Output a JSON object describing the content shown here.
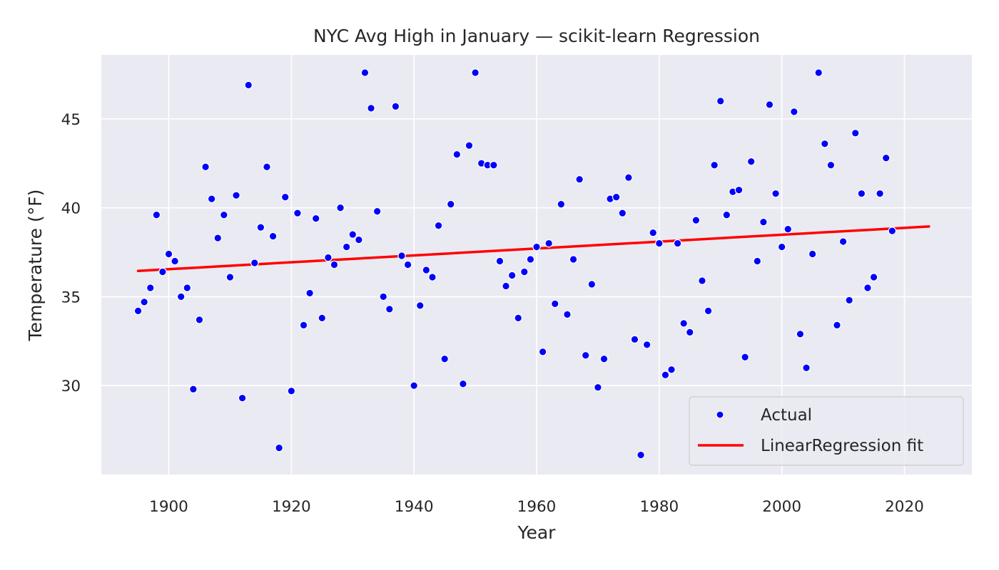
{
  "chart_data": {
    "type": "scatter",
    "title": "NYC Avg High in January — scikit-learn Regression",
    "xlabel": "Year",
    "ylabel": "Temperature (°F)",
    "xlim": [
      1889,
      2031
    ],
    "ylim": [
      25,
      48.6
    ],
    "xticks": [
      1900,
      1920,
      1940,
      1960,
      1980,
      2000,
      2020
    ],
    "yticks": [
      30,
      35,
      40,
      45
    ],
    "grid": true,
    "legend_position": "bottom-right",
    "colors": {
      "background": "#eaeaf2",
      "grid": "#ffffff",
      "points": "#0000ff",
      "fit": "#ff0000"
    },
    "series": [
      {
        "name": "Actual",
        "kind": "scatter",
        "x": [
          1895,
          1896,
          1897,
          1898,
          1899,
          1900,
          1901,
          1902,
          1903,
          1904,
          1905,
          1906,
          1907,
          1908,
          1909,
          1910,
          1911,
          1912,
          1913,
          1914,
          1915,
          1916,
          1917,
          1918,
          1919,
          1920,
          1921,
          1922,
          1923,
          1924,
          1925,
          1926,
          1927,
          1928,
          1929,
          1930,
          1931,
          1932,
          1933,
          1934,
          1935,
          1936,
          1937,
          1938,
          1939,
          1940,
          1941,
          1942,
          1943,
          1944,
          1945,
          1946,
          1947,
          1948,
          1949,
          1950,
          1951,
          1952,
          1953,
          1954,
          1955,
          1956,
          1957,
          1958,
          1959,
          1960,
          1961,
          1962,
          1963,
          1964,
          1965,
          1966,
          1967,
          1968,
          1969,
          1970,
          1971,
          1972,
          1973,
          1974,
          1975,
          1976,
          1977,
          1978,
          1979,
          1980,
          1981,
          1982,
          1983,
          1984,
          1985,
          1986,
          1987,
          1988,
          1989,
          1990,
          1991,
          1992,
          1993,
          1994,
          1995,
          1996,
          1997,
          1998,
          1999,
          2000,
          2001,
          2002,
          2003,
          2004,
          2005,
          2006,
          2007,
          2008,
          2009,
          2010,
          2011,
          2012,
          2013,
          2014,
          2015,
          2016,
          2017,
          2018
        ],
        "y": [
          34.2,
          34.7,
          35.5,
          39.6,
          36.4,
          37.4,
          37.0,
          35.0,
          35.5,
          29.8,
          33.7,
          42.3,
          40.5,
          38.3,
          39.6,
          36.1,
          40.7,
          29.3,
          46.9,
          36.9,
          38.9,
          42.3,
          38.4,
          26.5,
          40.6,
          29.7,
          39.7,
          33.4,
          35.2,
          39.4,
          33.8,
          37.2,
          36.8,
          40.0,
          37.8,
          38.5,
          38.2,
          47.6,
          45.6,
          39.8,
          35.0,
          34.3,
          45.7,
          37.3,
          36.8,
          30.0,
          34.5,
          36.5,
          36.1,
          39.0,
          31.5,
          40.2,
          43.0,
          30.1,
          43.5,
          47.6,
          42.5,
          42.4,
          42.4,
          37.0,
          35.6,
          36.2,
          33.8,
          36.4,
          37.1,
          37.8,
          31.9,
          38.0,
          34.6,
          40.2,
          34.0,
          37.1,
          41.6,
          31.7,
          35.7,
          29.9,
          31.5,
          40.5,
          40.6,
          39.7,
          41.7,
          32.6,
          26.1,
          32.3,
          38.6,
          38.0,
          30.6,
          30.9,
          38.0,
          33.5,
          33.0,
          39.3,
          35.9,
          34.2,
          42.4,
          46.0,
          39.6,
          40.9,
          41.0,
          31.6,
          42.6,
          37.0,
          39.2,
          45.8,
          40.8,
          37.8,
          38.8,
          45.4,
          32.9,
          31.0,
          37.4,
          47.6,
          43.6,
          42.4,
          33.4,
          38.1,
          34.8,
          44.2,
          40.8,
          35.5,
          36.1,
          40.8,
          42.8,
          38.7
        ]
      },
      {
        "name": "LinearRegression fit",
        "kind": "line",
        "x": [
          1895,
          2024
        ],
        "y": [
          36.45,
          38.95
        ]
      }
    ]
  }
}
